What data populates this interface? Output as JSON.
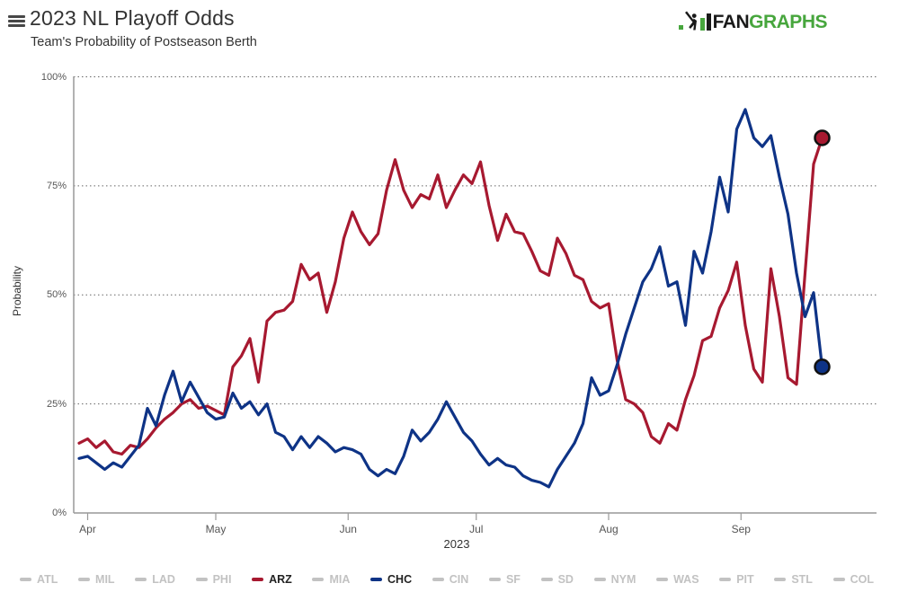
{
  "header": {
    "title": "2023 NL Playoff Odds",
    "subtitle": "Team's Probability of Postseason Berth"
  },
  "logo": {
    "fan": "FAN",
    "graphs": "GRAPHS",
    "green": "#47a63d",
    "black": "#1a1a1a"
  },
  "chart": {
    "ylabel": "Probability",
    "year_label": "2023",
    "y_ticks": [
      {
        "label": "100%",
        "value": 100
      },
      {
        "label": "75%",
        "value": 75
      },
      {
        "label": "50%",
        "value": 50
      },
      {
        "label": "25%",
        "value": 25
      },
      {
        "label": "0%",
        "value": 0
      }
    ],
    "month_ticks": [
      {
        "label": "Apr",
        "index": 1
      },
      {
        "label": "May",
        "index": 16
      },
      {
        "label": "Jun",
        "index": 31.5
      },
      {
        "label": "Jul",
        "index": 46.5
      },
      {
        "label": "Aug",
        "index": 62
      },
      {
        "label": "Sep",
        "index": 77.5
      }
    ],
    "grid_color": "#666",
    "axis_color": "#999"
  },
  "chart_data": {
    "type": "line",
    "title": "2023 NL Playoff Odds",
    "subtitle": "Team's Probability of Postseason Berth",
    "xlabel": "2023",
    "ylabel": "Probability",
    "ylim": [
      0,
      100
    ],
    "grid": "dotted horizontal at 25/50/75/100",
    "legend_position": "bottom",
    "x": [
      "3/30",
      "4/1",
      "4/3",
      "4/5",
      "4/7",
      "4/9",
      "4/11",
      "4/13",
      "4/15",
      "4/17",
      "4/19",
      "4/21",
      "4/23",
      "4/25",
      "4/27",
      "4/29",
      "5/1",
      "5/3",
      "5/5",
      "5/7",
      "5/9",
      "5/11",
      "5/13",
      "5/15",
      "5/17",
      "5/19",
      "5/21",
      "5/23",
      "5/25",
      "5/27",
      "5/29",
      "5/31",
      "6/2",
      "6/4",
      "6/6",
      "6/8",
      "6/10",
      "6/12",
      "6/14",
      "6/16",
      "6/18",
      "6/20",
      "6/22",
      "6/24",
      "6/26",
      "6/28",
      "6/30",
      "7/2",
      "7/4",
      "7/6",
      "7/8",
      "7/10",
      "7/12",
      "7/14",
      "7/16",
      "7/18",
      "7/20",
      "7/22",
      "7/24",
      "7/26",
      "7/28",
      "7/30",
      "8/1",
      "8/3",
      "8/5",
      "8/7",
      "8/9",
      "8/11",
      "8/13",
      "8/15",
      "8/17",
      "8/19",
      "8/21",
      "8/23",
      "8/25",
      "8/27",
      "8/29",
      "8/31",
      "9/2",
      "9/4",
      "9/6",
      "9/8",
      "9/10",
      "9/12",
      "9/14",
      "9/16",
      "9/18",
      "9/20"
    ],
    "series": [
      {
        "name": "ARZ",
        "color": "#A71930",
        "end_dot": true,
        "values": [
          16,
          17,
          15,
          16.5,
          14,
          13.5,
          15.5,
          15,
          17,
          19.5,
          21.5,
          23,
          25,
          26,
          24,
          24.5,
          23.5,
          22.5,
          33.5,
          36,
          40,
          30,
          44,
          46,
          46.5,
          48.5,
          57,
          53.5,
          55,
          46,
          53,
          63,
          69,
          64.5,
          61.5,
          64,
          74,
          81,
          74,
          70,
          73,
          72,
          77.5,
          70,
          74,
          77.5,
          75.5,
          80.5,
          70.5,
          62.5,
          68.5,
          64.5,
          64,
          60,
          55.5,
          54.5,
          63,
          59.5,
          54.5,
          53.5,
          48.5,
          47,
          48,
          35,
          26,
          25,
          23,
          17.5,
          16,
          20.5,
          19,
          26,
          31.5,
          39.5,
          40.5,
          47,
          51,
          57.5,
          43,
          33,
          30,
          56,
          45,
          31,
          29.5,
          55,
          80,
          86
        ]
      },
      {
        "name": "CHC",
        "color": "#0E3386",
        "end_dot": true,
        "values": [
          12.5,
          13,
          11.5,
          10,
          11.5,
          10.5,
          13,
          15.5,
          24,
          20,
          27,
          32.5,
          25.5,
          30,
          26.5,
          23,
          21.5,
          22,
          27.5,
          24,
          25.5,
          22.5,
          25,
          18.5,
          17.5,
          14.5,
          17.5,
          15,
          17.5,
          16,
          14,
          15,
          14.5,
          13.5,
          10,
          8.5,
          10,
          9,
          13,
          19,
          16.5,
          18.5,
          21.5,
          25.5,
          22,
          18.5,
          16.5,
          13.5,
          11,
          12.5,
          11,
          10.5,
          8.5,
          7.5,
          7,
          6,
          10,
          13,
          16,
          20.5,
          31,
          27,
          28,
          34,
          41,
          47,
          53,
          56,
          61,
          52,
          53,
          43,
          60,
          55,
          64.5,
          77,
          69,
          88,
          92.5,
          86,
          84,
          86.5,
          77,
          68.5,
          55,
          45,
          50.5,
          33.5
        ]
      }
    ]
  },
  "legend": {
    "inactive_color": "#c2c2c2",
    "active_text_color": "#222",
    "items": [
      {
        "label": "ATL",
        "active": false
      },
      {
        "label": "MIL",
        "active": false
      },
      {
        "label": "LAD",
        "active": false
      },
      {
        "label": "PHI",
        "active": false
      },
      {
        "label": "ARZ",
        "active": true,
        "color": "#A71930"
      },
      {
        "label": "MIA",
        "active": false
      },
      {
        "label": "CHC",
        "active": true,
        "color": "#0E3386"
      },
      {
        "label": "CIN",
        "active": false
      },
      {
        "label": "SF",
        "active": false
      },
      {
        "label": "SD",
        "active": false
      },
      {
        "label": "NYM",
        "active": false
      },
      {
        "label": "WAS",
        "active": false
      },
      {
        "label": "PIT",
        "active": false
      },
      {
        "label": "STL",
        "active": false
      },
      {
        "label": "COL",
        "active": false
      }
    ]
  }
}
